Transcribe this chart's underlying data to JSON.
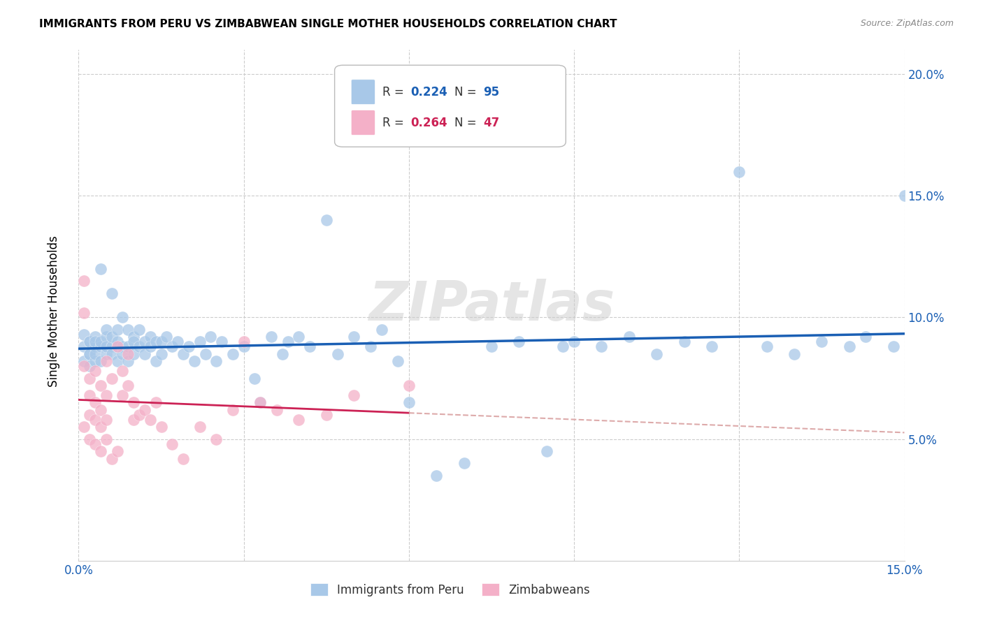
{
  "title": "IMMIGRANTS FROM PERU VS ZIMBABWEAN SINGLE MOTHER HOUSEHOLDS CORRELATION CHART",
  "source": "Source: ZipAtlas.com",
  "ylabel_label": "Single Mother Households",
  "xlim": [
    0.0,
    0.15
  ],
  "ylim": [
    0.0,
    0.21
  ],
  "blue_color": "#a8c8e8",
  "pink_color": "#f4b0c8",
  "blue_line_color": "#1a5fb4",
  "pink_line_color": "#cc2255",
  "pink_dash_color": "#ddaaaa",
  "watermark_text": "ZIPatlas",
  "legend_r_blue": "0.224",
  "legend_n_blue": "95",
  "legend_r_pink": "0.264",
  "legend_n_pink": "47",
  "legend_label_blue": "Immigrants from Peru",
  "legend_label_pink": "Zimbabweans",
  "blue_scatter_x": [
    0.001,
    0.001,
    0.001,
    0.002,
    0.002,
    0.002,
    0.002,
    0.002,
    0.003,
    0.003,
    0.003,
    0.003,
    0.003,
    0.004,
    0.004,
    0.004,
    0.004,
    0.005,
    0.005,
    0.005,
    0.005,
    0.006,
    0.006,
    0.006,
    0.006,
    0.007,
    0.007,
    0.007,
    0.007,
    0.008,
    0.008,
    0.008,
    0.009,
    0.009,
    0.009,
    0.01,
    0.01,
    0.01,
    0.011,
    0.011,
    0.012,
    0.012,
    0.013,
    0.013,
    0.014,
    0.014,
    0.015,
    0.015,
    0.016,
    0.017,
    0.018,
    0.019,
    0.02,
    0.021,
    0.022,
    0.023,
    0.024,
    0.025,
    0.026,
    0.028,
    0.03,
    0.032,
    0.033,
    0.035,
    0.037,
    0.038,
    0.04,
    0.042,
    0.045,
    0.047,
    0.05,
    0.053,
    0.055,
    0.058,
    0.06,
    0.065,
    0.07,
    0.075,
    0.08,
    0.085,
    0.088,
    0.09,
    0.095,
    0.1,
    0.105,
    0.11,
    0.115,
    0.12,
    0.125,
    0.13,
    0.135,
    0.14,
    0.143,
    0.148,
    0.15
  ],
  "blue_scatter_y": [
    0.082,
    0.088,
    0.093,
    0.08,
    0.085,
    0.09,
    0.085,
    0.09,
    0.082,
    0.088,
    0.085,
    0.092,
    0.09,
    0.088,
    0.082,
    0.09,
    0.12,
    0.085,
    0.092,
    0.088,
    0.095,
    0.11,
    0.088,
    0.085,
    0.092,
    0.095,
    0.088,
    0.082,
    0.09,
    0.1,
    0.088,
    0.085,
    0.095,
    0.088,
    0.082,
    0.092,
    0.085,
    0.09,
    0.095,
    0.088,
    0.09,
    0.085,
    0.092,
    0.088,
    0.09,
    0.082,
    0.09,
    0.085,
    0.092,
    0.088,
    0.09,
    0.085,
    0.088,
    0.082,
    0.09,
    0.085,
    0.092,
    0.082,
    0.09,
    0.085,
    0.088,
    0.075,
    0.065,
    0.092,
    0.085,
    0.09,
    0.092,
    0.088,
    0.14,
    0.085,
    0.092,
    0.088,
    0.095,
    0.082,
    0.065,
    0.035,
    0.04,
    0.088,
    0.09,
    0.045,
    0.088,
    0.09,
    0.088,
    0.092,
    0.085,
    0.09,
    0.088,
    0.16,
    0.088,
    0.085,
    0.09,
    0.088,
    0.092,
    0.088,
    0.15
  ],
  "pink_scatter_x": [
    0.001,
    0.001,
    0.001,
    0.001,
    0.002,
    0.002,
    0.002,
    0.002,
    0.003,
    0.003,
    0.003,
    0.003,
    0.004,
    0.004,
    0.004,
    0.004,
    0.005,
    0.005,
    0.005,
    0.005,
    0.006,
    0.006,
    0.007,
    0.007,
    0.008,
    0.008,
    0.009,
    0.009,
    0.01,
    0.01,
    0.011,
    0.012,
    0.013,
    0.014,
    0.015,
    0.017,
    0.019,
    0.022,
    0.025,
    0.028,
    0.03,
    0.033,
    0.036,
    0.04,
    0.045,
    0.05,
    0.06
  ],
  "pink_scatter_y": [
    0.115,
    0.102,
    0.08,
    0.055,
    0.075,
    0.068,
    0.06,
    0.05,
    0.078,
    0.065,
    0.058,
    0.048,
    0.072,
    0.062,
    0.055,
    0.045,
    0.082,
    0.068,
    0.058,
    0.05,
    0.075,
    0.042,
    0.088,
    0.045,
    0.078,
    0.068,
    0.085,
    0.072,
    0.065,
    0.058,
    0.06,
    0.062,
    0.058,
    0.065,
    0.055,
    0.048,
    0.042,
    0.055,
    0.05,
    0.062,
    0.09,
    0.065,
    0.062,
    0.058,
    0.06,
    0.068,
    0.072
  ]
}
